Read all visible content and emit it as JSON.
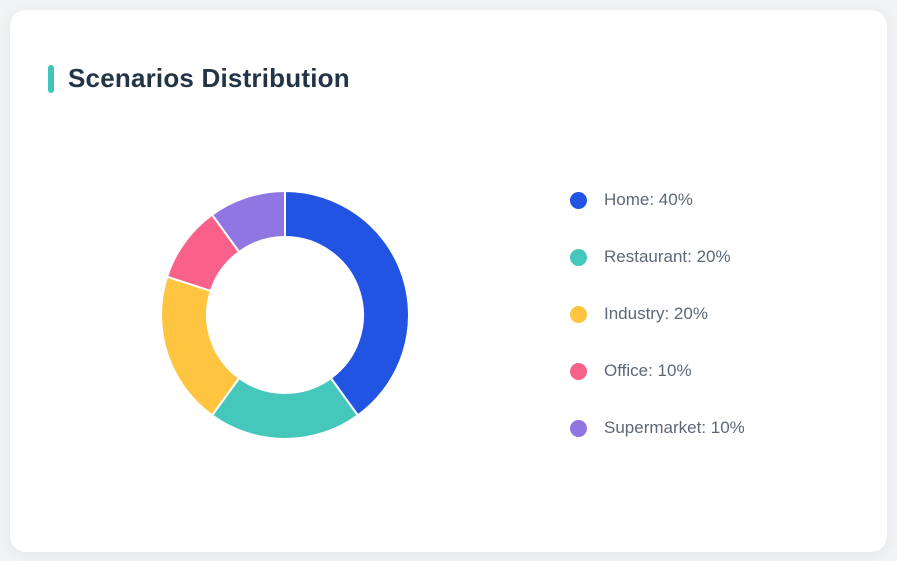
{
  "card": {
    "title": "Scenarios Distribution",
    "accent_color": "#3EC6BA"
  },
  "chart_data": {
    "type": "pie",
    "variant": "donut",
    "title": "Scenarios Distribution",
    "categories": [
      "Home",
      "Restaurant",
      "Industry",
      "Office",
      "Supermarket"
    ],
    "values": [
      40,
      20,
      20,
      10,
      10
    ],
    "unit": "%",
    "colors": [
      "#2254E4",
      "#45C7BB",
      "#FFC541",
      "#F9618A",
      "#8F76E3"
    ],
    "start_angle_deg": 0,
    "direction": "clockwise",
    "inner_radius_ratio": 0.63,
    "slice_gap_color": "#ffffff",
    "legend_position": "right",
    "legend_entries": [
      "Home: 40%",
      "Restaurant: 20%",
      "Industry: 20%",
      "Office: 10%",
      "Supermarket: 10%"
    ]
  }
}
